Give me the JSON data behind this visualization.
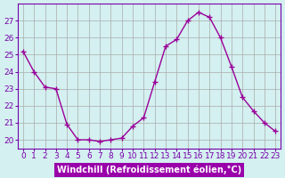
{
  "hours": [
    0,
    1,
    2,
    3,
    4,
    5,
    6,
    7,
    8,
    9,
    10,
    11,
    12,
    13,
    14,
    15,
    16,
    17,
    18,
    19,
    20,
    21,
    22,
    23
  ],
  "values": [
    25.2,
    24.0,
    23.1,
    23.0,
    20.9,
    20.0,
    20.0,
    19.9,
    20.0,
    20.1,
    20.8,
    21.3,
    23.4,
    25.5,
    25.9,
    27.0,
    27.5,
    27.2,
    26.0,
    24.3,
    22.5,
    21.7,
    21.0,
    20.5
  ],
  "line_color": "#990099",
  "marker": "+",
  "marker_size": 5,
  "xlim": [
    -0.5,
    23.5
  ],
  "ylim": [
    19.5,
    28.0
  ],
  "yticks": [
    20,
    21,
    22,
    23,
    24,
    25,
    26,
    27
  ],
  "xticks": [
    0,
    1,
    2,
    3,
    4,
    5,
    6,
    7,
    8,
    9,
    10,
    11,
    12,
    13,
    14,
    15,
    16,
    17,
    18,
    19,
    20,
    21,
    22,
    23
  ],
  "xlabel": "Windchill (Refroidissement éolien,°C)",
  "background_color": "#d4f0f0",
  "grid_color": "#aaaaaa",
  "title_color": "#7700aa",
  "axis_label_color": "#7700aa",
  "tick_label_color": "#7700aa",
  "xlabel_fontsize": 7,
  "tick_fontsize": 6.5,
  "xlabel_bg_color": "#9900aa",
  "xlabel_text_color": "#ffffff"
}
